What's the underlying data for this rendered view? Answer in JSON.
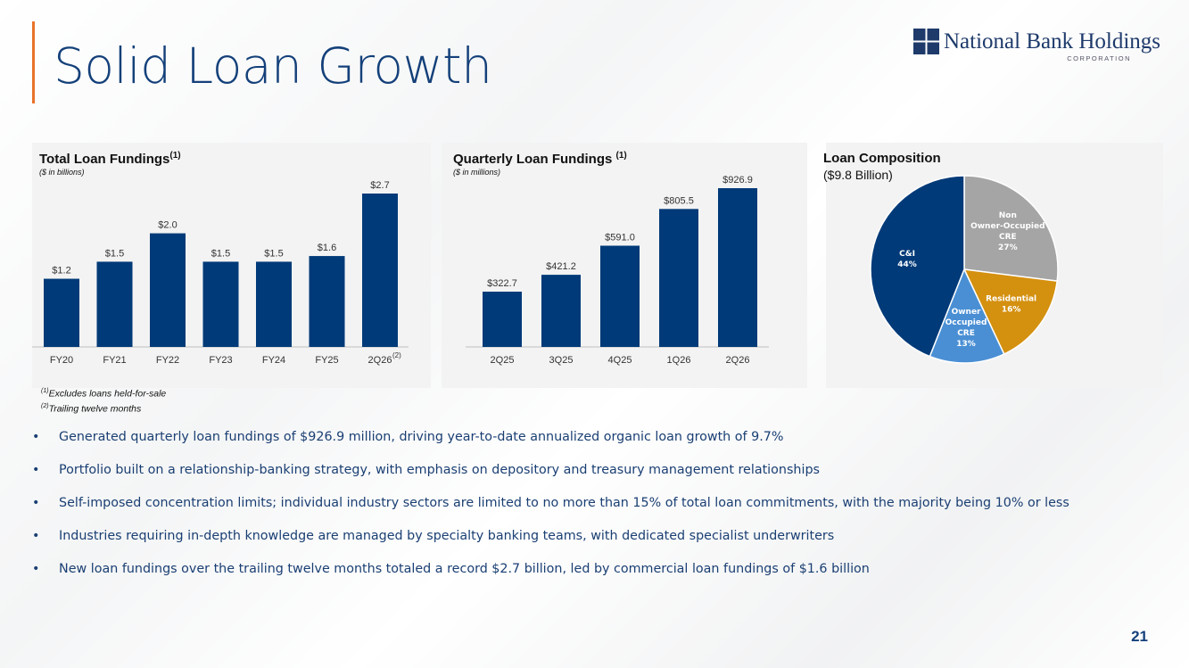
{
  "page": {
    "title": "Solid Loan Growth",
    "page_number": "21",
    "accent_color": "#e8732a"
  },
  "logo": {
    "name": "National Bank Holdings",
    "sub": "CORPORATION",
    "icon": "four-squares-logo-mark"
  },
  "panels": {
    "total": {
      "title": "Total Loan Fundings",
      "title_sup": "(1)",
      "subtitle": "($ in billions)",
      "last_label_sup": "(2)"
    },
    "quarterly": {
      "title": "Quarterly Loan Fundings ",
      "title_sup": "(1)",
      "subtitle": "($ in millions)"
    },
    "composition": {
      "title": "Loan Composition",
      "subtitle": "($9.8 Billion)"
    }
  },
  "footnotes": [
    {
      "marker": "(1)",
      "text": "Excludes loans held-for-sale"
    },
    {
      "marker": "(2)",
      "text": "Trailing twelve months"
    }
  ],
  "bullets": [
    "Generated quarterly loan fundings of $926.9 million, driving year-to-date annualized organic loan growth of 9.7%",
    "Portfolio built on a relationship-banking strategy, with emphasis on depository and treasury management relationships",
    "Self-imposed concentration limits; individual industry sectors are limited to no more than 15% of total loan commitments, with the majority being 10% or less",
    "Industries requiring in-depth knowledge are managed by specialty banking teams, with dedicated specialist underwriters",
    "New loan fundings over the trailing twelve months totaled a record $2.7 billion, led by commercial loan fundings of $1.6 billion"
  ],
  "chart_data": [
    {
      "type": "bar",
      "title": "Total Loan Fundings",
      "unit": "($ in billions)",
      "categories": [
        "FY20",
        "FY21",
        "FY22",
        "FY23",
        "FY24",
        "FY25",
        "2Q26"
      ],
      "values": [
        1.2,
        1.5,
        2.0,
        1.5,
        1.5,
        1.6,
        2.7
      ],
      "labels": [
        "$1.2",
        "$1.5",
        "$2.0",
        "$1.5",
        "$1.5",
        "$1.6",
        "$2.7"
      ],
      "ylim": [
        0,
        2.7
      ],
      "color": "#003a78",
      "grid": false
    },
    {
      "type": "bar",
      "title": "Quarterly Loan Fundings",
      "unit": "($ in millions)",
      "categories": [
        "2Q25",
        "3Q25",
        "4Q25",
        "1Q26",
        "2Q26"
      ],
      "values": [
        322.7,
        421.2,
        591.0,
        805.5,
        926.9
      ],
      "labels": [
        "$322.7",
        "$421.2",
        "$591.0",
        "$805.5",
        "$926.9"
      ],
      "ylim": [
        0,
        926.9
      ],
      "color": "#003a78",
      "grid": false
    },
    {
      "type": "pie",
      "title": "Loan Composition",
      "subtitle": "($9.8 Billion)",
      "slices": [
        {
          "label": [
            "Non",
            "Owner-Occupied",
            "CRE"
          ],
          "pct_label": "27%",
          "value": 27,
          "color": "#a5a5a5"
        },
        {
          "label": [
            "Residential"
          ],
          "pct_label": "16%",
          "value": 16,
          "color": "#d4900f"
        },
        {
          "label": [
            "Owner",
            "Occupied",
            "CRE"
          ],
          "pct_label": "13%",
          "value": 13,
          "color": "#4a8fd4"
        },
        {
          "label": [
            "C&I"
          ],
          "pct_label": "44%",
          "value": 44,
          "color": "#003a78"
        }
      ]
    }
  ]
}
